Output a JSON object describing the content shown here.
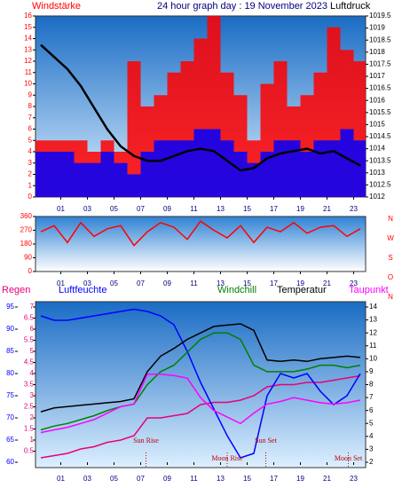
{
  "chart_data": [
    {
      "type": "bar",
      "title": "24 hour graph day : 19 November 2023",
      "ylabel": "Windstärke",
      "y2label": "Luftdruck",
      "x": [
        -0.5,
        0.5,
        1.5,
        2.5,
        3.5,
        4.5,
        5.5,
        6.5,
        7.5,
        8.5,
        9.5,
        10.5,
        11.5,
        12.5,
        13.5,
        14.5,
        15.5,
        16.5,
        17.5,
        18.5,
        19.5,
        20.5,
        21.5,
        22.5,
        23.5
      ],
      "xlim": [
        -0.9,
        23.9
      ],
      "xticks": [
        {
          "value": 1,
          "label": "01"
        },
        {
          "value": 3,
          "label": "03"
        },
        {
          "value": 5,
          "label": "05"
        },
        {
          "value": 7,
          "label": "07"
        },
        {
          "value": 9,
          "label": "09"
        },
        {
          "value": 11,
          "label": "11"
        },
        {
          "value": 13,
          "label": "13"
        },
        {
          "value": 15,
          "label": "15"
        },
        {
          "value": 17,
          "label": "17"
        },
        {
          "value": 19,
          "label": "19"
        },
        {
          "value": 21,
          "label": "21"
        },
        {
          "value": 23,
          "label": "23"
        }
      ],
      "ylim": [
        0,
        16
      ],
      "yticks": [
        0,
        1,
        2,
        3,
        4,
        5,
        6,
        7,
        8,
        9,
        10,
        11,
        12,
        13,
        14,
        15,
        16
      ],
      "y2lim": [
        1012,
        1019.5
      ],
      "y2ticks": [
        1012,
        1012.5,
        1013,
        1013.5,
        1014,
        1014.5,
        1015,
        1015.5,
        1016,
        1016.5,
        1017,
        1017.5,
        1018,
        1018.5,
        1019,
        1019.5
      ],
      "series": [
        {
          "color": "#ff0000",
          "values": [
            5,
            5,
            5,
            5,
            4,
            5,
            4,
            12,
            8,
            9,
            11,
            12,
            14,
            16,
            11,
            9,
            5,
            10,
            12,
            8,
            9,
            11,
            15,
            13,
            12
          ]
        },
        {
          "color": "#0000ff",
          "values": [
            4,
            4,
            4,
            3,
            3,
            4,
            3,
            2,
            4,
            5,
            5,
            5,
            6,
            6,
            5,
            4,
            3,
            4,
            5,
            5,
            4,
            5,
            5,
            6,
            5
          ]
        },
        {
          "type": "line",
          "axis": "y2",
          "color": "#000000",
          "values": [
            1018.3,
            1017.8,
            1017.3,
            1016.6,
            1015.7,
            1014.8,
            1014.1,
            1013.7,
            1013.5,
            1013.5,
            1013.7,
            1013.9,
            1014.0,
            1013.9,
            1013.5,
            1013.1,
            1013.2,
            1013.6,
            1013.8,
            1013.9,
            1014.0,
            1013.8,
            1013.9,
            1013.6,
            1013.3
          ]
        }
      ]
    },
    {
      "type": "line",
      "x": [
        -0.5,
        0.5,
        1.5,
        2.5,
        3.5,
        4.5,
        5.5,
        6.5,
        7.5,
        8.5,
        9.5,
        10.5,
        11.5,
        12.5,
        13.5,
        14.5,
        15.5,
        16.5,
        17.5,
        18.5,
        19.5,
        20.5,
        21.5,
        22.5,
        23.5
      ],
      "xlim": [
        -0.9,
        23.9
      ],
      "xticks": [
        {
          "value": 1,
          "label": "01"
        },
        {
          "value": 3,
          "label": "03"
        },
        {
          "value": 5,
          "label": "05"
        },
        {
          "value": 7,
          "label": "07"
        },
        {
          "value": 9,
          "label": "09"
        },
        {
          "value": 11,
          "label": "11"
        },
        {
          "value": 13,
          "label": "13"
        },
        {
          "value": 15,
          "label": "15"
        },
        {
          "value": 17,
          "label": "17"
        },
        {
          "value": 19,
          "label": "19"
        },
        {
          "value": 21,
          "label": "21"
        },
        {
          "value": 23,
          "label": "23"
        }
      ],
      "ylim": [
        0,
        360
      ],
      "yticks": [
        0,
        90,
        180,
        270,
        360
      ],
      "compass": [
        "N",
        "W",
        "S",
        "O",
        "N"
      ],
      "series": [
        {
          "color": "#ff0000",
          "values": [
            260,
            300,
            190,
            320,
            230,
            280,
            300,
            170,
            260,
            320,
            290,
            210,
            330,
            270,
            220,
            300,
            190,
            290,
            260,
            320,
            250,
            290,
            300,
            230,
            280
          ]
        }
      ]
    },
    {
      "type": "line",
      "x": [
        -0.5,
        0.5,
        1.5,
        2.5,
        3.5,
        4.5,
        5.5,
        6.5,
        7.5,
        8.5,
        9.5,
        10.5,
        11.5,
        12.5,
        13.5,
        14.5,
        15.5,
        16.5,
        17.5,
        18.5,
        19.5,
        20.5,
        21.5,
        22.5,
        23.5
      ],
      "xlim": [
        -0.9,
        23.9
      ],
      "xticks": [
        {
          "value": 1,
          "label": "01"
        },
        {
          "value": 3,
          "label": "03"
        },
        {
          "value": 5,
          "label": "05"
        },
        {
          "value": 7,
          "label": "07"
        },
        {
          "value": 9,
          "label": "09"
        },
        {
          "value": 11,
          "label": "11"
        },
        {
          "value": 13,
          "label": "13"
        },
        {
          "value": 15,
          "label": "15"
        },
        {
          "value": 17,
          "label": "17"
        },
        {
          "value": 19,
          "label": "19"
        },
        {
          "value": 21,
          "label": "21"
        },
        {
          "value": 23,
          "label": "23"
        }
      ],
      "ylim": [
        0,
        7
      ],
      "yticks": [
        0.5,
        1,
        1.5,
        2,
        2.5,
        3,
        3.5,
        4,
        4.5,
        5,
        5.5,
        6,
        6.5,
        7
      ],
      "y2lim": [
        2,
        14
      ],
      "y2ticks": [
        2,
        3,
        4,
        5,
        6,
        7,
        8,
        9,
        10,
        11,
        12,
        13,
        14
      ],
      "y3lim": [
        60,
        95
      ],
      "y3ticks": [
        60,
        65,
        70,
        75,
        80,
        85,
        90,
        95
      ],
      "series": [
        {
          "name": "Regen",
          "axis": "y",
          "color": "#e8007a",
          "values": [
            0.2,
            0.3,
            0.4,
            0.6,
            0.7,
            0.9,
            1.0,
            1.2,
            2.0,
            2.0,
            2.1,
            2.2,
            2.6,
            2.7,
            2.7,
            2.8,
            3.0,
            3.4,
            3.5,
            3.5,
            3.6,
            3.6,
            3.7,
            3.8,
            3.9
          ]
        },
        {
          "name": "Luftfeuchte",
          "axis": "y3",
          "color": "#0000ff",
          "values": [
            93,
            92,
            92,
            92.5,
            93,
            93.5,
            94,
            94.5,
            94,
            93,
            91,
            85,
            78,
            72,
            66,
            61,
            62,
            75,
            80,
            79,
            80,
            76,
            73,
            75,
            80
          ]
        },
        {
          "name": "Windchill",
          "axis": "y2",
          "color": "#008000",
          "values": [
            4.5,
            4.8,
            5,
            5.3,
            5.6,
            6,
            6.3,
            6.5,
            8,
            9,
            9.5,
            10.5,
            11.5,
            12,
            12,
            11.5,
            9.5,
            9,
            9,
            9,
            9.2,
            9.5,
            9.5,
            9.3,
            9.5
          ]
        },
        {
          "name": "Temperatur",
          "axis": "y2",
          "color": "#000000",
          "values": [
            5.9,
            6.2,
            6.3,
            6.4,
            6.5,
            6.6,
            6.7,
            6.9,
            9,
            10.2,
            10.8,
            11.5,
            12,
            12.5,
            12.6,
            12.7,
            12.2,
            9.9,
            9.8,
            9.9,
            9.8,
            10,
            10.1,
            10.2,
            10.1
          ]
        },
        {
          "name": "Taupunkt",
          "axis": "y2",
          "color": "#ff00ff",
          "values": [
            4.3,
            4.5,
            4.7,
            5,
            5.3,
            5.8,
            6.3,
            6.5,
            8.8,
            8.8,
            8.7,
            8.5,
            7,
            6,
            5.5,
            5,
            5.8,
            6.5,
            6.7,
            7,
            6.8,
            6.6,
            6.5,
            6.6,
            6.8
          ]
        }
      ],
      "annotations": [
        {
          "text": "Sun Rise",
          "x": 7.4
        },
        {
          "text": "Moon Rise",
          "x": 13.5
        },
        {
          "text": "Sun Set",
          "x": 16.4
        },
        {
          "text": "Moon Set",
          "x": 22.6
        }
      ]
    }
  ]
}
